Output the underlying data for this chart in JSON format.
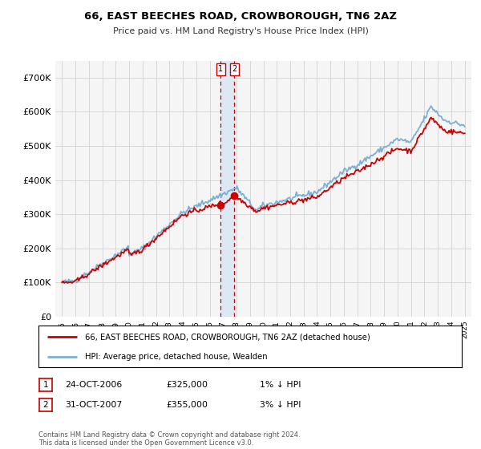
{
  "title": "66, EAST BEECHES ROAD, CROWBOROUGH, TN6 2AZ",
  "subtitle": "Price paid vs. HM Land Registry's House Price Index (HPI)",
  "legend_line1": "66, EAST BEECHES ROAD, CROWBOROUGH, TN6 2AZ (detached house)",
  "legend_line2": "HPI: Average price, detached house, Wealden",
  "transaction1_date": "24-OCT-2006",
  "transaction1_price": "£325,000",
  "transaction1_hpi": "1% ↓ HPI",
  "transaction2_date": "31-OCT-2007",
  "transaction2_price": "£355,000",
  "transaction2_hpi": "3% ↓ HPI",
  "footer": "Contains HM Land Registry data © Crown copyright and database right 2024.\nThis data is licensed under the Open Government Licence v3.0.",
  "hpi_color": "#7bafd4",
  "price_color": "#cc0000",
  "marker_color": "#cc0000",
  "vline_color": "#cc0000",
  "highlight_color": "#dde8f5",
  "grid_color": "#cccccc",
  "background_color": "#f5f5f5",
  "ylim": [
    0,
    750000
  ],
  "yticks": [
    0,
    100000,
    200000,
    300000,
    400000,
    500000,
    600000,
    700000
  ],
  "ytick_labels": [
    "£0",
    "£100K",
    "£200K",
    "£300K",
    "£400K",
    "£500K",
    "£600K",
    "£700K"
  ],
  "transaction1_x": 2006.82,
  "transaction2_x": 2007.84,
  "transaction1_y": 325000,
  "transaction2_y": 355000,
  "xlim": [
    1994.5,
    2025.5
  ]
}
